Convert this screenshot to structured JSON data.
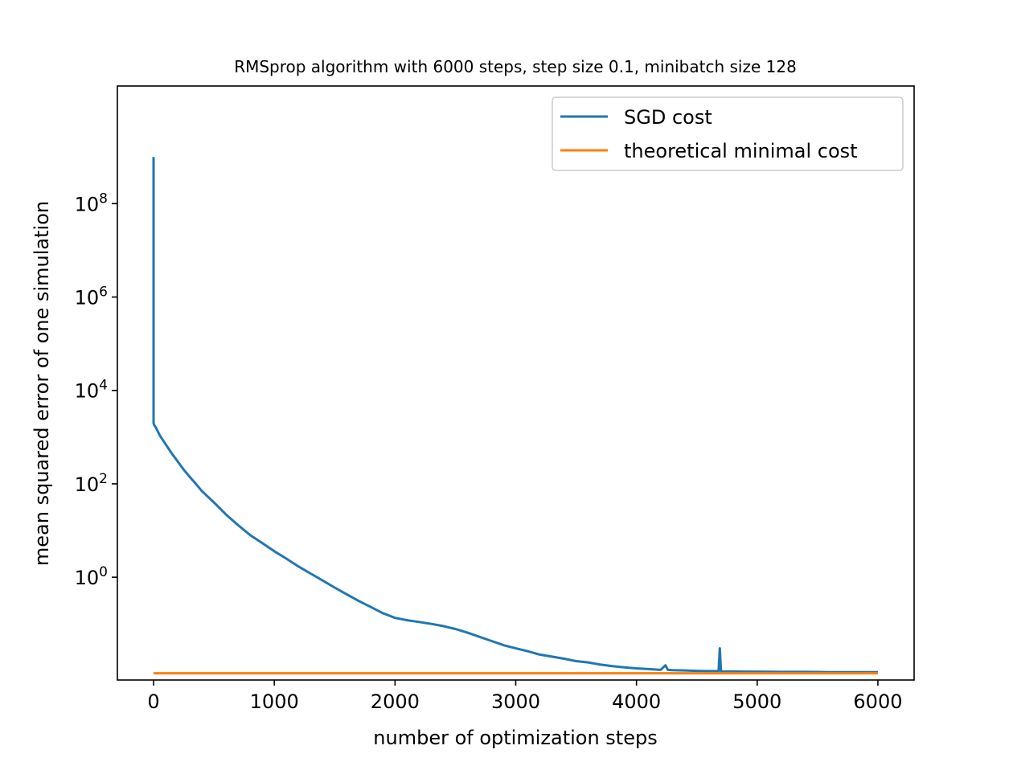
{
  "chart_data": {
    "type": "line",
    "title": "RMSprop algorithm with 6000 steps, step size 0.1, minibatch size 128",
    "xlabel": "number of optimization steps",
    "ylabel": "mean squared error of one simulation",
    "xlim": [
      -300,
      6300
    ],
    "ylim": [
      0.0063,
      33000000000
    ],
    "yscale": "log",
    "xticks": [
      0,
      1000,
      2000,
      3000,
      4000,
      5000,
      6000
    ],
    "yticks": [
      {
        "value": 1,
        "base": "10",
        "exp": "0"
      },
      {
        "value": 100,
        "base": "10",
        "exp": "2"
      },
      {
        "value": 10000,
        "base": "10",
        "exp": "4"
      },
      {
        "value": 1000000,
        "base": "10",
        "exp": "6"
      },
      {
        "value": 100000000,
        "base": "10",
        "exp": "8"
      }
    ],
    "grid": false,
    "legend_position": "top-right",
    "series": [
      {
        "name": "SGD cost",
        "color": "#1f77b4",
        "x": [
          0,
          0,
          5,
          20,
          50,
          100,
          150,
          200,
          250,
          300,
          350,
          400,
          500,
          600,
          700,
          800,
          900,
          1000,
          1100,
          1200,
          1300,
          1400,
          1500,
          1600,
          1700,
          1800,
          1900,
          2000,
          2100,
          2200,
          2300,
          2400,
          2500,
          2600,
          2700,
          2800,
          2900,
          3000,
          3100,
          3200,
          3300,
          3400,
          3500,
          3600,
          3700,
          3800,
          3900,
          4000,
          4100,
          4200,
          4240,
          4260,
          4300,
          4400,
          4500,
          4600,
          4680,
          4690,
          4700,
          4710,
          4800,
          4900,
          5000,
          5200,
          5400,
          5600,
          5800,
          6000
        ],
        "y": [
          1000000000,
          2000,
          1800,
          1600,
          1100,
          700,
          450,
          300,
          200,
          140,
          100,
          70,
          40,
          22,
          13,
          8,
          5.4,
          3.6,
          2.5,
          1.7,
          1.2,
          0.85,
          0.6,
          0.43,
          0.31,
          0.23,
          0.17,
          0.135,
          0.12,
          0.11,
          0.1,
          0.09,
          0.078,
          0.065,
          0.053,
          0.043,
          0.035,
          0.03,
          0.026,
          0.022,
          0.02,
          0.018,
          0.016,
          0.015,
          0.0135,
          0.0125,
          0.0118,
          0.0112,
          0.0108,
          0.0104,
          0.013,
          0.0104,
          0.0102,
          0.0101,
          0.0099,
          0.0098,
          0.0098,
          0.03,
          0.0097,
          0.0096,
          0.0096,
          0.0095,
          0.0095,
          0.0094,
          0.0094,
          0.0093,
          0.0093,
          0.0093
        ]
      },
      {
        "name": "theoretical minimal cost",
        "color": "#ff7f0e",
        "x": [
          0,
          6000
        ],
        "y": [
          0.0088,
          0.0088
        ]
      }
    ]
  }
}
